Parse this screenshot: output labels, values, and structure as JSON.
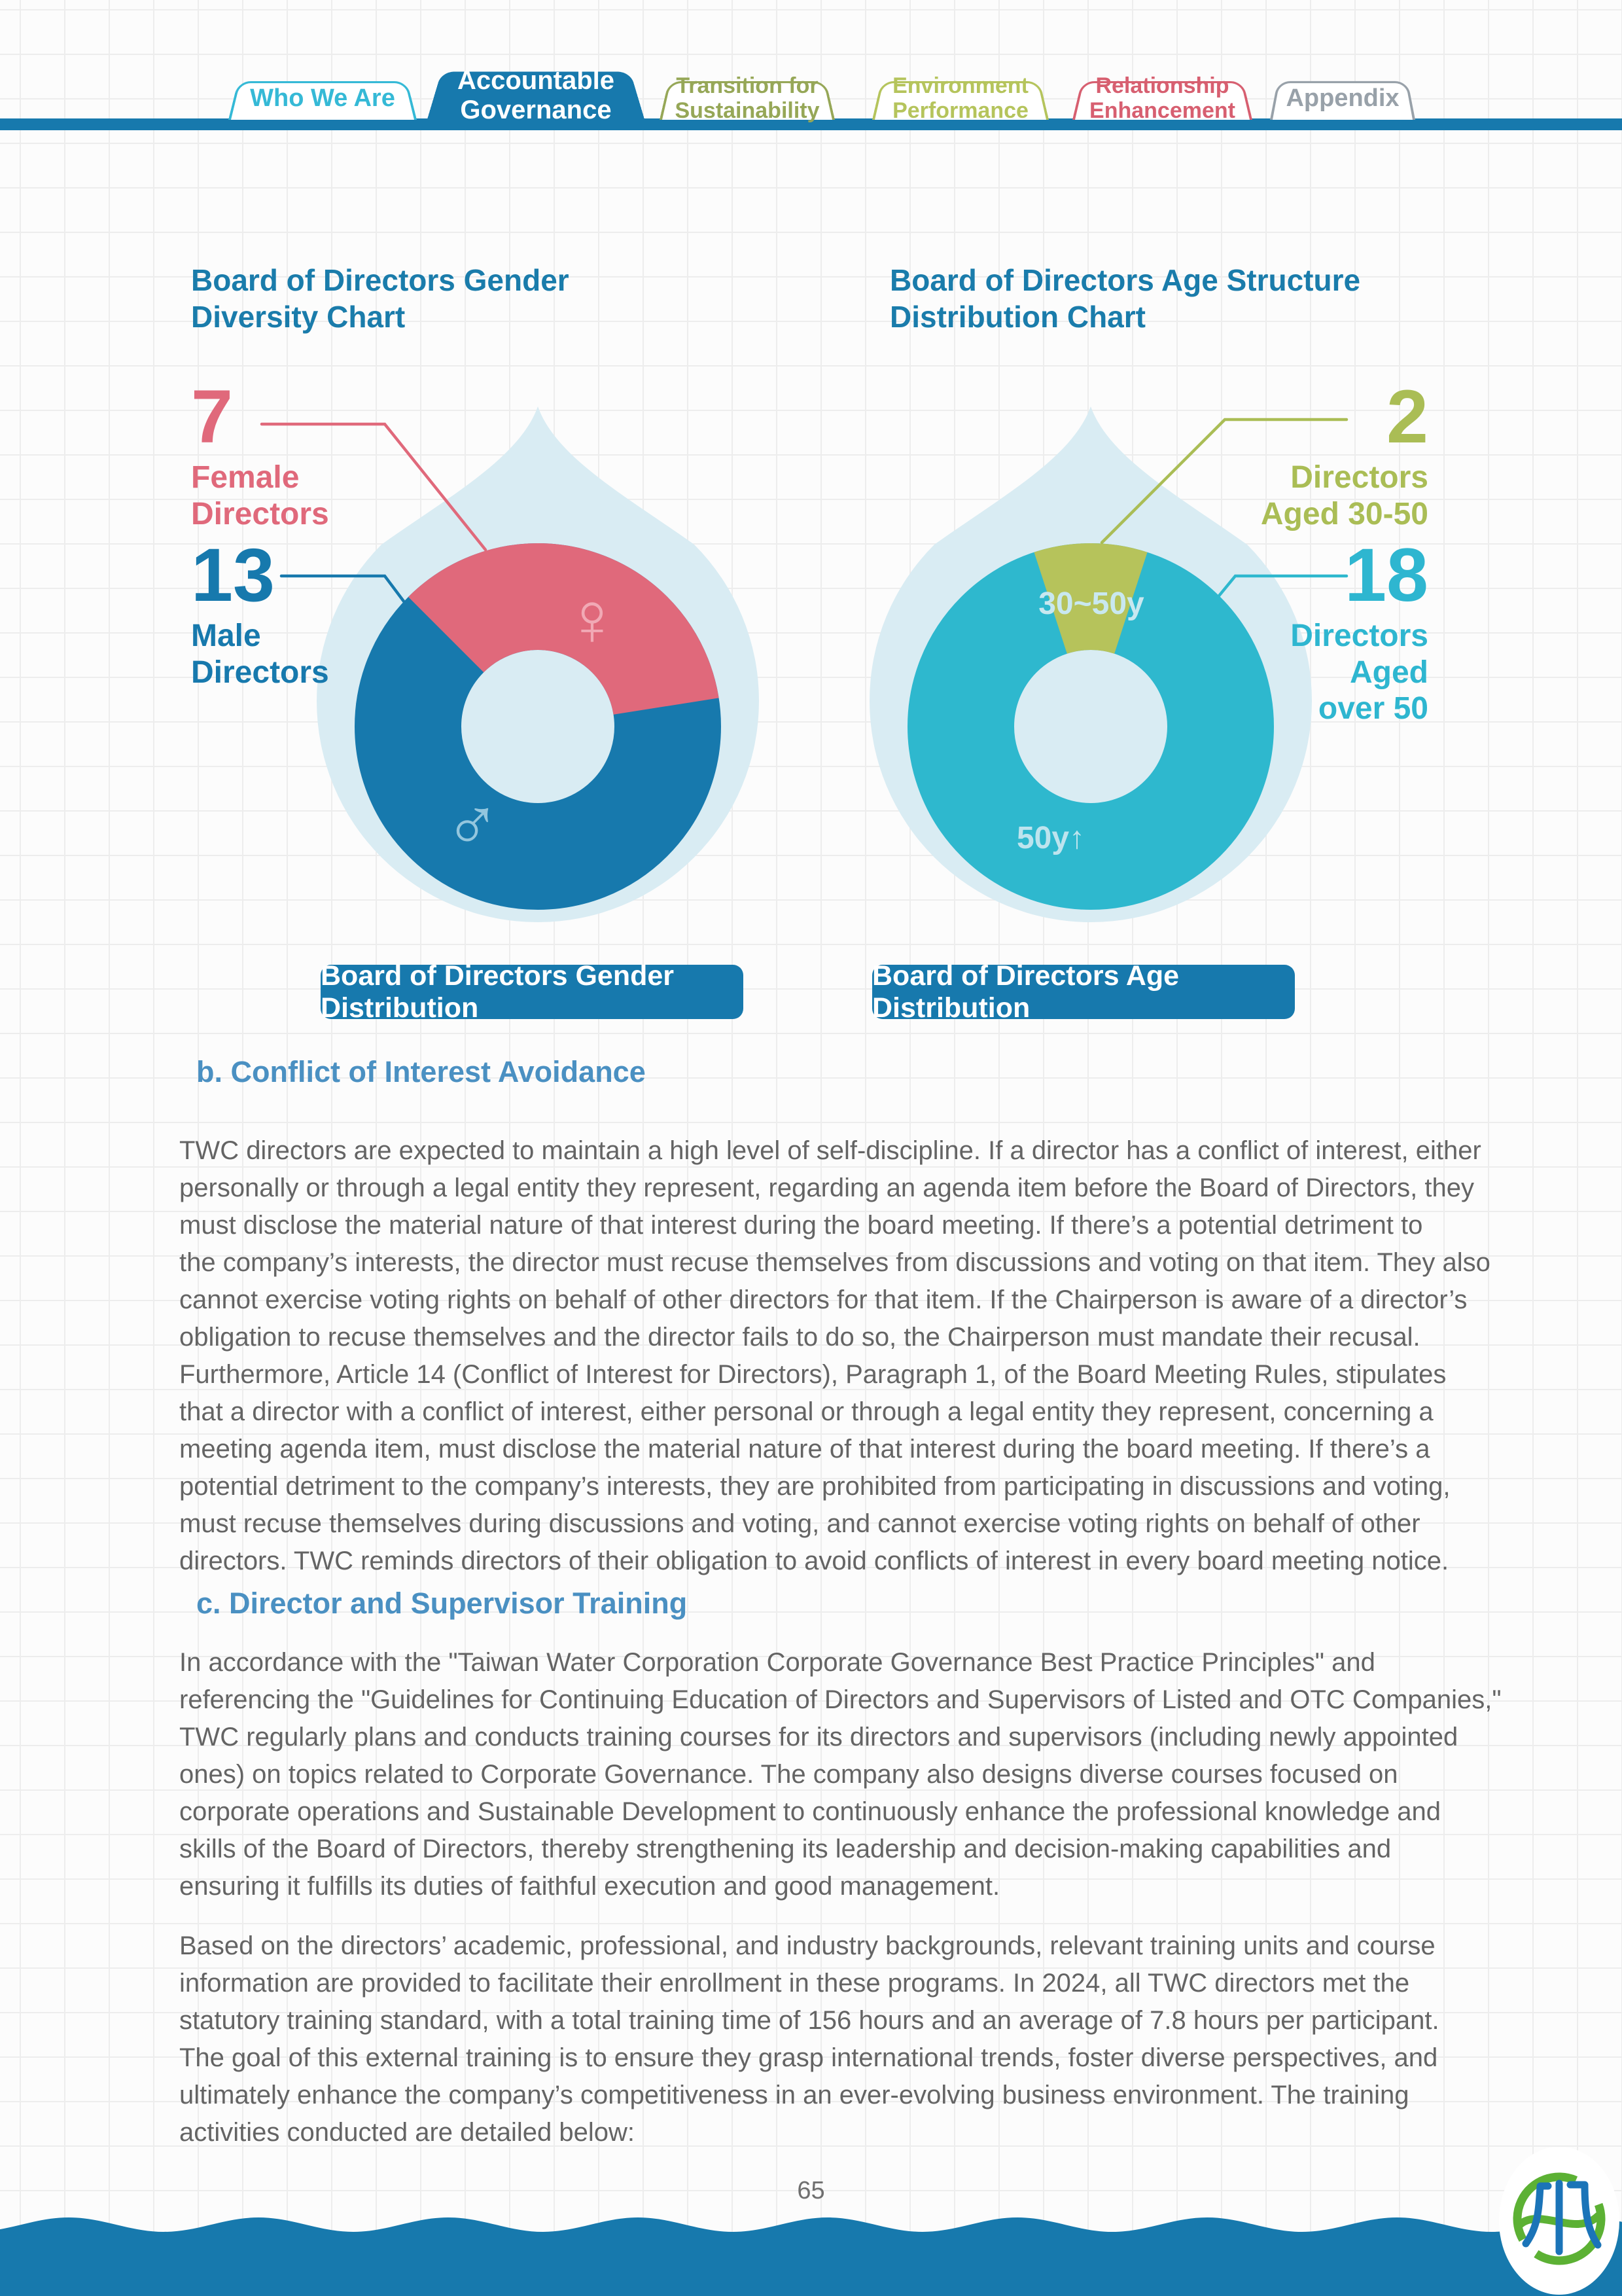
{
  "nav": {
    "tabs": [
      {
        "label": "Who We Are",
        "color": "#35b9d6",
        "active": false
      },
      {
        "label": "Accountable\nGovernance",
        "color": "#1779ad",
        "active": true
      },
      {
        "label": "Transition for\nSustainability",
        "color": "#96a757",
        "active": false
      },
      {
        "label": "Environment\nPerformance",
        "color": "#b5c45c",
        "active": false
      },
      {
        "label": "Relationship\nEnhancement",
        "color": "#d75f70",
        "active": false
      },
      {
        "label": "Appendix",
        "color": "#98a1a9",
        "active": false
      }
    ]
  },
  "charts": {
    "gender": {
      "title": "Board of Directors Gender\nDiversity Chart",
      "female_value": "7",
      "female_label": "Female\nDirectors",
      "male_value": "13",
      "male_label": "Male\nDirectors",
      "female_symbol": "♀",
      "male_symbol": "♂",
      "caption": "Board of Directors Gender Distribution"
    },
    "age": {
      "title": "Board of Directors Age Structure\nDistribution Chart",
      "young_value": "2",
      "young_label": "Directors\nAged 30-50",
      "old_value": "18",
      "old_label": "Directors\nAged\nover 50",
      "young_ring_label": "30~50y",
      "old_ring_label": "50y↑",
      "caption": "Board of Directors Age Distribution"
    }
  },
  "sections": {
    "b_heading": "b. Conflict of Interest Avoidance",
    "b_lines": [
      "TWC directors are expected to maintain a high level of self-discipline. If a director has a conflict of interest, either",
      "personally or through a legal entity they represent, regarding an agenda item before the Board of Directors, they",
      "must disclose the material nature of that interest during the board meeting. If there’s a potential detriment to",
      "the company’s interests, the director must recuse themselves from discussions and voting on that item. They also",
      "cannot exercise voting rights on behalf of other directors for that item. If the Chairperson is aware of a director’s",
      "obligation to recuse themselves and the director fails to do so, the Chairperson must mandate their recusal.",
      "Furthermore, Article 14 (Conflict of Interest for Directors), Paragraph 1, of the Board Meeting Rules, stipulates",
      "that a director with a conflict of interest, either personal or through a legal entity they represent, concerning a",
      "meeting agenda item, must disclose the material nature of that interest during the board meeting. If there’s a",
      "potential detriment to the company’s interests, they are prohibited from participating in discussions and voting,",
      "must recuse themselves during discussions and voting, and cannot exercise voting rights on behalf of other",
      "directors. TWC reminds directors of their obligation to avoid conflicts of interest in every board meeting notice."
    ],
    "c_heading": "c. Director and Supervisor Training",
    "c1_lines": [
      "In accordance with the \"Taiwan Water Corporation Corporate Governance Best Practice Principles\" and",
      "referencing the \"Guidelines for Continuing Education of Directors and Supervisors of Listed and OTC Companies,\"",
      "TWC regularly plans and conducts training courses for its directors and supervisors (including newly appointed",
      "ones) on topics related to Corporate Governance. The company also designs diverse courses focused on",
      "corporate operations and Sustainable Development to continuously enhance the professional knowledge and",
      "skills of the Board of Directors, thereby strengthening its leadership and decision-making capabilities and",
      "ensuring it fulfills its duties of faithful execution and good management."
    ],
    "c2_lines": [
      "Based on the directors’ academic, professional, and industry backgrounds, relevant training units and course",
      "information are provided to facilitate their enrollment in these programs. In 2024, all TWC directors met the",
      "statutory training standard, with a total training time of 156 hours and an average of 7.8 hours per participant.",
      "The goal of this external training is to ensure they grasp international trends, foster diverse perspectives, and",
      "ultimately enhance the company’s competitiveness in an ever-evolving business environment. The training",
      "activities conducted are detailed below:"
    ]
  },
  "footer": {
    "page_number": "65"
  },
  "colors": {
    "accent_blue": "#1779ad",
    "pink": "#e0697b",
    "cyan": "#2eb8ce",
    "olive": "#aabd55",
    "drop_light_blue": "#d9ecf3",
    "heading_blue": "#4a90c2",
    "title_teal": "#1a7cab",
    "body_gray": "#646464"
  },
  "chart_data": [
    {
      "type": "pie",
      "title": "Board of Directors Gender Diversity Chart",
      "labels": [
        "Female Directors",
        "Male Directors"
      ],
      "values": [
        7,
        13
      ],
      "colors": [
        "#e0697b",
        "#1779ad"
      ],
      "legend_position": "left",
      "caption": "Board of Directors Gender Distribution"
    },
    {
      "type": "pie",
      "title": "Board of Directors Age Structure Distribution Chart",
      "labels": [
        "Directors Aged 30-50",
        "Directors Aged over 50"
      ],
      "values": [
        2,
        18
      ],
      "colors": [
        "#b6c35b",
        "#2eb8ce"
      ],
      "legend_position": "right",
      "caption": "Board of Directors Age Distribution"
    }
  ]
}
